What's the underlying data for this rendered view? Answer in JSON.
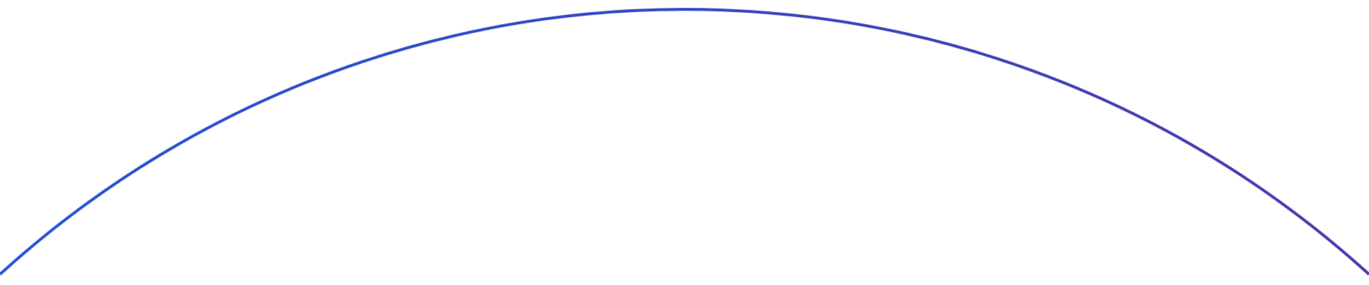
{
  "colors": {
    "background": "#ffffff",
    "arc_start": "#1f4fd6",
    "arc_end": "#4535a8"
  }
}
